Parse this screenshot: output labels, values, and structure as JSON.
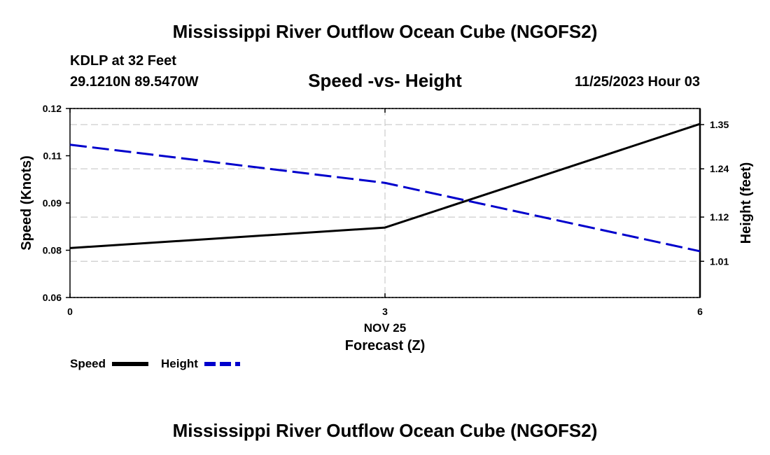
{
  "page": {
    "title_top": "Mississippi River Outflow Ocean Cube (NGOFS2)",
    "title_bottom": "Mississippi River Outflow Ocean Cube (NGOFS2)",
    "station": "KDLP at 32 Feet",
    "coords": "29.1210N  89.5470W",
    "subtitle": "Speed -vs- Height",
    "datetime": "11/25/2023 Hour 03"
  },
  "chart_data": {
    "type": "line",
    "title": "Speed -vs- Height",
    "xlabel": "Forecast (Z)",
    "x_date_label": "NOV 25",
    "ylabel_left": "Speed (Knots)",
    "ylabel_right": "Height (feet)",
    "x": [
      0,
      3,
      6
    ],
    "x_ticks": [
      "0",
      "3",
      "6"
    ],
    "xlim": [
      0,
      6
    ],
    "ylim_left": [
      0.06,
      0.12
    ],
    "yticks_left": [
      "0.06",
      "0.08",
      "0.09",
      "0.11",
      "0.12"
    ],
    "ylim_right": [
      0.92,
      1.39
    ],
    "yticks_right": [
      "1.01",
      "1.12",
      "1.24",
      "1.35"
    ],
    "grid": true,
    "legend_position": "bottom-left",
    "series": [
      {
        "name": "Speed",
        "axis": "left",
        "values": [
          0.0757,
          0.0822,
          0.1151
        ],
        "color": "#000000",
        "style": "solid"
      },
      {
        "name": "Height",
        "axis": "right",
        "values": [
          1.3,
          1.205,
          1.035
        ],
        "color": "#0000cc",
        "style": "dashed"
      }
    ]
  }
}
